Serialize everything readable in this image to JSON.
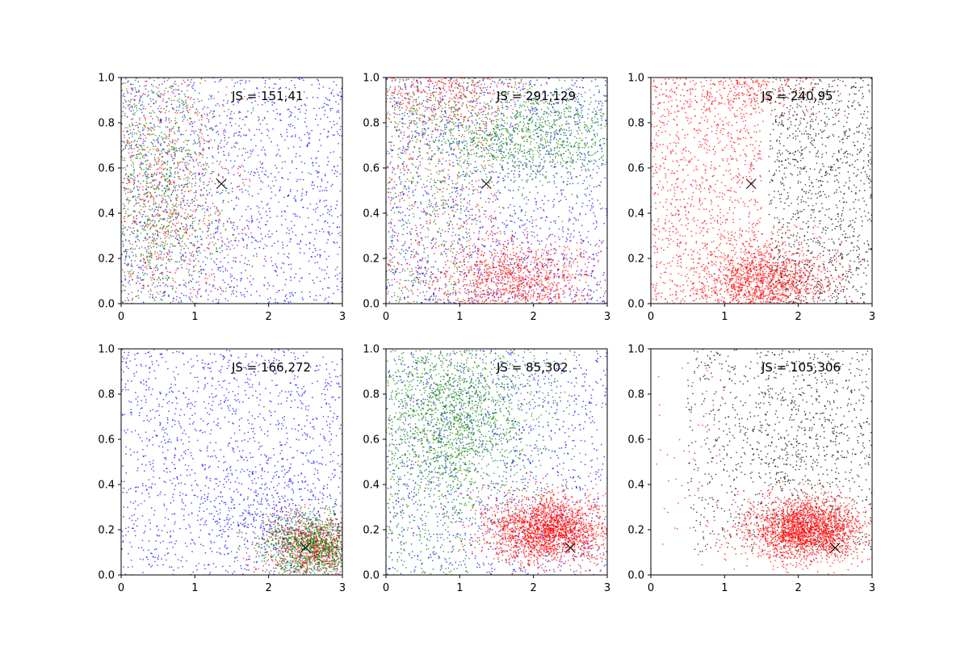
{
  "colors": {
    "blue": "#0000ff",
    "green": "#007f00",
    "red": "#ff0000",
    "black": "#000000"
  },
  "chart_data": [
    {
      "type": "scatter",
      "annotation": "JS = 151,41",
      "xlim": [
        0,
        3
      ],
      "ylim": [
        0,
        1
      ],
      "xticks": [
        "0",
        "1",
        "2",
        "3"
      ],
      "yticks": [
        "0.0",
        "0.2",
        "0.4",
        "0.6",
        "0.8",
        "1.0"
      ],
      "marker_x": {
        "x": 1.36,
        "y": 0.53
      },
      "series": [
        {
          "color": "blue",
          "n": 1500,
          "dist": "uniform",
          "x": [
            0,
            3
          ],
          "y": [
            0,
            1
          ]
        },
        {
          "color": "red",
          "n": 1100,
          "dist": "gauss",
          "cx": 0.55,
          "sx": 0.6,
          "cy": 0.5,
          "sy": 0.35
        },
        {
          "color": "green",
          "n": 1300,
          "dist": "gauss",
          "cx": 0.45,
          "sx": 0.5,
          "cy": 0.5,
          "sy": 0.35
        }
      ]
    },
    {
      "type": "scatter",
      "annotation": "JS = 291,129",
      "xlim": [
        0,
        3
      ],
      "ylim": [
        0,
        1
      ],
      "xticks": [
        "0",
        "1",
        "2",
        "3"
      ],
      "yticks": [
        "0.0",
        "0.2",
        "0.4",
        "0.6",
        "0.8",
        "1.0"
      ],
      "marker_x": {
        "x": 1.36,
        "y": 0.53
      },
      "series": [
        {
          "color": "blue",
          "n": 1500,
          "dist": "uniform",
          "x": [
            0,
            3
          ],
          "y": [
            0,
            1
          ]
        },
        {
          "color": "red",
          "n": 1200,
          "dist": "gauss",
          "cx": 1.8,
          "sx": 0.5,
          "cy": 0.1,
          "sy": 0.1
        },
        {
          "color": "red",
          "n": 400,
          "dist": "gauss",
          "cx": 0.8,
          "sx": 0.6,
          "cy": 0.95,
          "sy": 0.08
        },
        {
          "color": "red",
          "n": 500,
          "dist": "uniform",
          "x": [
            0,
            1.5
          ],
          "y": [
            0,
            1
          ]
        },
        {
          "color": "green",
          "n": 1300,
          "dist": "gauss",
          "cx": 1.9,
          "sx": 0.8,
          "cy": 0.75,
          "sy": 0.12
        },
        {
          "color": "green",
          "n": 400,
          "dist": "uniform",
          "x": [
            0,
            1.2
          ],
          "y": [
            0,
            1
          ]
        }
      ]
    },
    {
      "type": "scatter",
      "annotation": "JS = 240,95",
      "xlim": [
        0,
        3
      ],
      "ylim": [
        0,
        1
      ],
      "xticks": [
        "0",
        "1",
        "2",
        "3"
      ],
      "yticks": [
        "0.0",
        "0.2",
        "0.4",
        "0.6",
        "0.8",
        "1.0"
      ],
      "marker_x": {
        "x": 1.36,
        "y": 0.53
      },
      "series": [
        {
          "color": "black",
          "n": 1100,
          "dist": "uniform",
          "x": [
            1.6,
            3
          ],
          "y": [
            0,
            1
          ]
        },
        {
          "color": "red",
          "n": 1500,
          "dist": "gauss",
          "cx": 1.6,
          "sx": 0.45,
          "cy": 0.1,
          "sy": 0.09
        },
        {
          "color": "red",
          "n": 1100,
          "dist": "uniform",
          "x": [
            0,
            1.5
          ],
          "y": [
            0,
            1
          ]
        },
        {
          "color": "red",
          "n": 350,
          "dist": "gauss",
          "cx": 1.3,
          "sx": 0.6,
          "cy": 0.95,
          "sy": 0.07
        }
      ]
    },
    {
      "type": "scatter",
      "annotation": "JS = 166,272",
      "xlim": [
        0,
        3
      ],
      "ylim": [
        0,
        1
      ],
      "xticks": [
        "0",
        "1",
        "2",
        "3"
      ],
      "yticks": [
        "0.0",
        "0.2",
        "0.4",
        "0.6",
        "0.8",
        "1.0"
      ],
      "marker_x": {
        "x": 2.5,
        "y": 0.12
      },
      "series": [
        {
          "color": "blue",
          "n": 1500,
          "dist": "uniform",
          "x": [
            0,
            3
          ],
          "y": [
            0,
            1
          ]
        },
        {
          "color": "blue",
          "n": 300,
          "dist": "gauss",
          "cx": 2.0,
          "sx": 0.5,
          "cy": 0.25,
          "sy": 0.12
        },
        {
          "color": "red",
          "n": 900,
          "dist": "gauss",
          "cx": 2.6,
          "sx": 0.35,
          "cy": 0.13,
          "sy": 0.07
        },
        {
          "color": "green",
          "n": 1100,
          "dist": "gauss",
          "cx": 2.6,
          "sx": 0.35,
          "cy": 0.13,
          "sy": 0.07
        }
      ]
    },
    {
      "type": "scatter",
      "annotation": "JS = 85,302",
      "xlim": [
        0,
        3
      ],
      "ylim": [
        0,
        1
      ],
      "xticks": [
        "0",
        "1",
        "2",
        "3"
      ],
      "yticks": [
        "0.0",
        "0.2",
        "0.4",
        "0.6",
        "0.8",
        "1.0"
      ],
      "marker_x": {
        "x": 2.5,
        "y": 0.12
      },
      "series": [
        {
          "color": "blue",
          "n": 1200,
          "dist": "uniform",
          "x": [
            0,
            3
          ],
          "y": [
            0,
            1
          ]
        },
        {
          "color": "green",
          "n": 1700,
          "dist": "gauss",
          "cx": 1.0,
          "sx": 0.6,
          "cy": 0.7,
          "sy": 0.2
        },
        {
          "color": "green",
          "n": 500,
          "dist": "uniform",
          "x": [
            0,
            1.2
          ],
          "y": [
            0,
            1
          ]
        },
        {
          "color": "red",
          "n": 2200,
          "dist": "gauss",
          "cx": 2.2,
          "sx": 0.4,
          "cy": 0.2,
          "sy": 0.07
        }
      ]
    },
    {
      "type": "scatter",
      "annotation": "JS = 105,306",
      "xlim": [
        0,
        3
      ],
      "ylim": [
        0,
        1
      ],
      "xticks": [
        "0",
        "1",
        "2",
        "3"
      ],
      "yticks": [
        "0.0",
        "0.2",
        "0.4",
        "0.6",
        "0.8",
        "1.0"
      ],
      "marker_x": {
        "x": 2.5,
        "y": 0.12
      },
      "series": [
        {
          "color": "black",
          "n": 900,
          "dist": "uniform",
          "x": [
            0.5,
            3
          ],
          "y": [
            0.1,
            1
          ]
        },
        {
          "color": "black",
          "n": 300,
          "dist": "gauss",
          "cx": 2.1,
          "sx": 0.4,
          "cy": 0.6,
          "sy": 0.2
        },
        {
          "color": "red",
          "n": 2400,
          "dist": "gauss",
          "cx": 2.1,
          "sx": 0.4,
          "cy": 0.2,
          "sy": 0.07
        },
        {
          "color": "red",
          "n": 60,
          "dist": "uniform",
          "x": [
            0,
            1
          ],
          "y": [
            0,
            1
          ]
        }
      ]
    }
  ]
}
